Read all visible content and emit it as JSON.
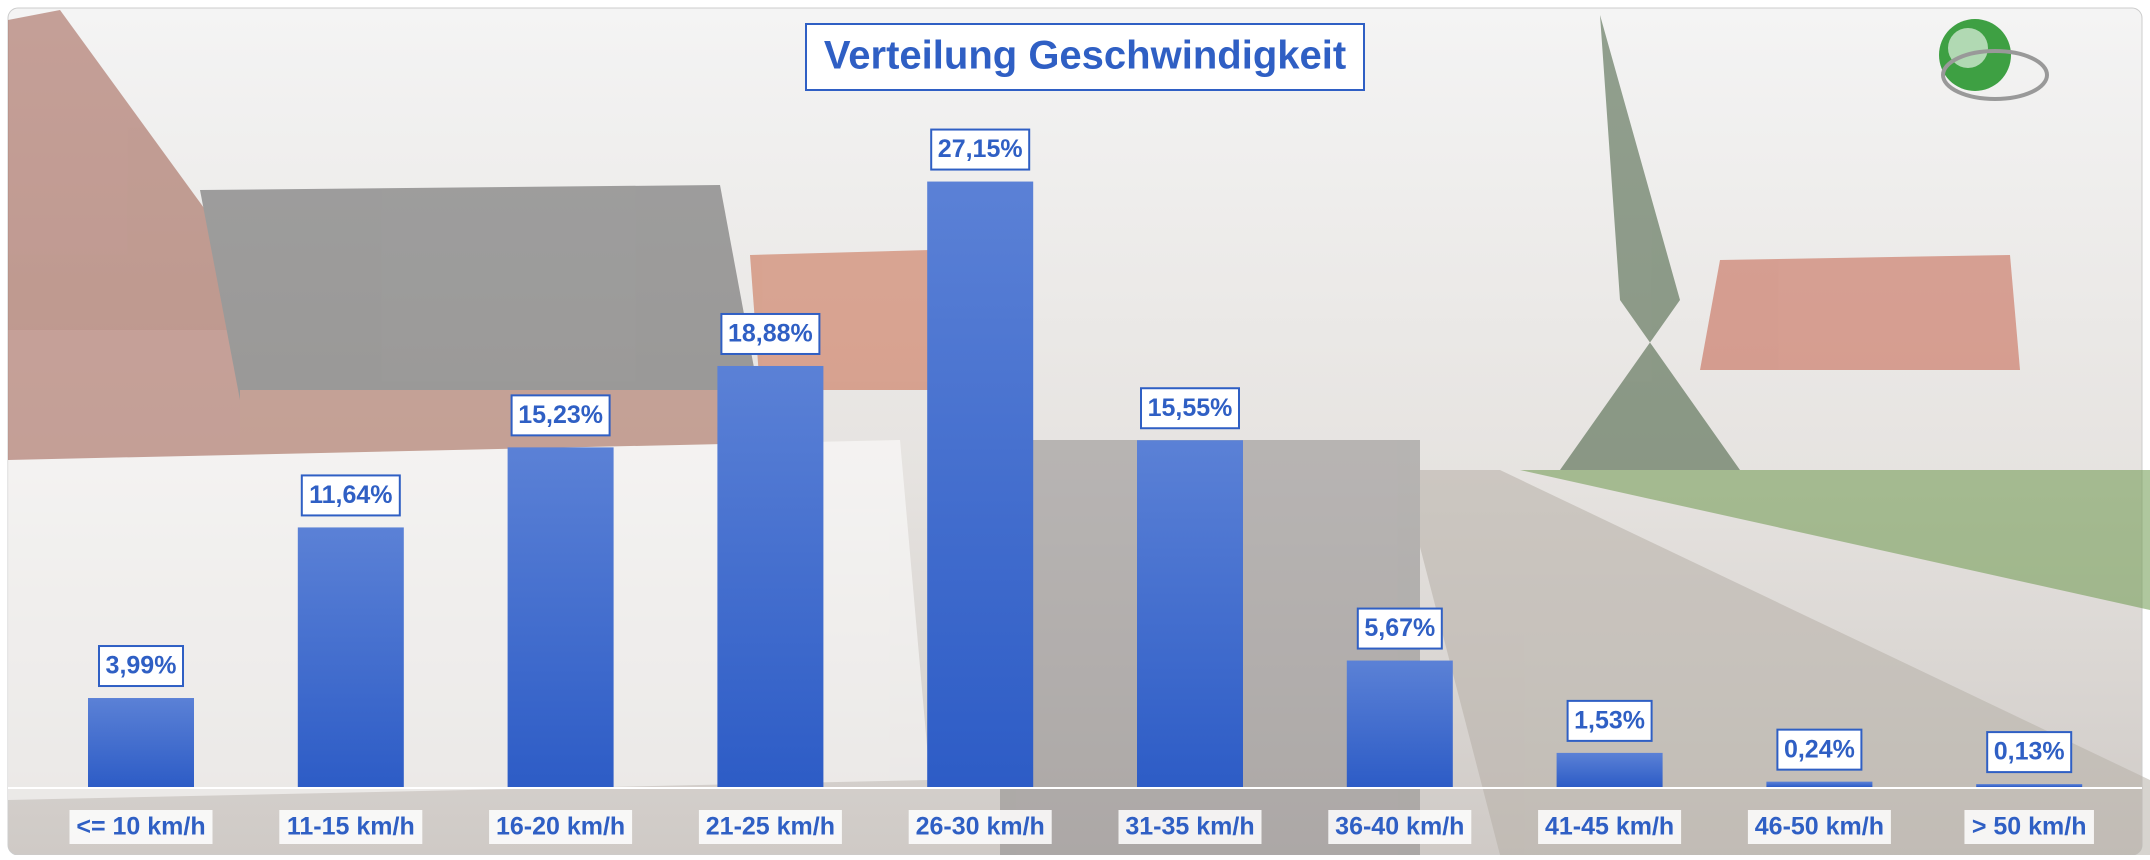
{
  "chart_data": {
    "type": "bar",
    "title": "Verteilung Geschwindigkeit",
    "categories": [
      "<= 10 km/h",
      "11-15 km/h",
      "16-20 km/h",
      "21-25 km/h",
      "26-30 km/h",
      "31-35 km/h",
      "36-40 km/h",
      "41-45 km/h",
      "46-50 km/h",
      "> 50 km/h"
    ],
    "values": [
      3.99,
      11.64,
      15.23,
      18.88,
      27.15,
      15.55,
      5.67,
      1.53,
      0.24,
      0.13
    ],
    "value_labels": [
      "3,99%",
      "11,64%",
      "15,23%",
      "18,88%",
      "27,15%",
      "15,55%",
      "5,67%",
      "1,53%",
      "0,24%",
      "0,13%"
    ],
    "color": "#3a66cc"
  }
}
